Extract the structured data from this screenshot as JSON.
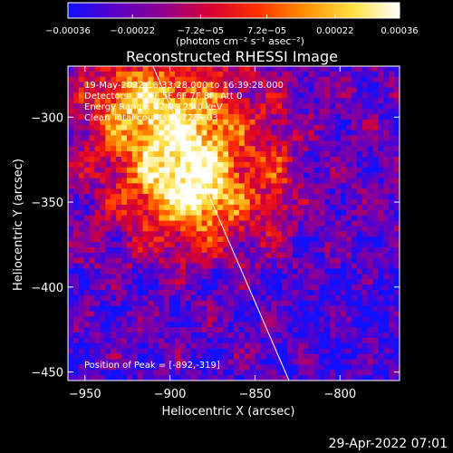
{
  "chart_data": {
    "type": "heatmap",
    "title": "Reconstructed RHESSI Image",
    "xlabel": "Heliocentric X (arcsec)",
    "ylabel": "Heliocentric Y (arcsec)",
    "xlim": [
      -960,
      -765
    ],
    "ylim": [
      -455,
      -270
    ],
    "x_ticks": [
      -950,
      -900,
      -850,
      -800
    ],
    "y_ticks": [
      -300,
      -350,
      -400,
      -450
    ],
    "x_tick_labels": [
      "−950",
      "−900",
      "−850",
      "−800"
    ],
    "y_tick_labels": [
      "−300",
      "−350",
      "−400",
      "−450"
    ],
    "colorbar": {
      "min": -0.00036,
      "max": 0.00036,
      "ticks": [
        -0.00036,
        -0.00022,
        -7.2e-05,
        7.2e-05,
        0.00022,
        0.00036
      ],
      "tick_labels": [
        "−0.00036",
        "−0.00022",
        "−7.2e−05",
        "7.2e−05",
        "0.00022",
        "0.00036"
      ],
      "units_label": "(photons cm⁻² s⁻¹ asec⁻²)",
      "colors": [
        "#1010ff",
        "#5a00c8",
        "#900090",
        "#d80030",
        "#ff3000",
        "#ff9000",
        "#ffe040",
        "#ffffff"
      ]
    },
    "peak": [
      -892,
      -319
    ],
    "limb_line": {
      "x": [
        -910,
        -830
      ],
      "y": [
        -270,
        -455
      ]
    },
    "annotations": [
      "19-May-2022 16:33:28.000 to 16:39:28.000",
      "Detectors: 3F 4F 5F 6F 7F 8F, Att 0",
      "Energy Range: 12.0 - 25.0 keV",
      "Clean      Total counts: 4.72E+03"
    ],
    "peak_text": "Position of Peak = [-892,-319]",
    "grid": false,
    "legend": "none"
  },
  "footer": {
    "date": "29-Apr-2022 07:01"
  }
}
